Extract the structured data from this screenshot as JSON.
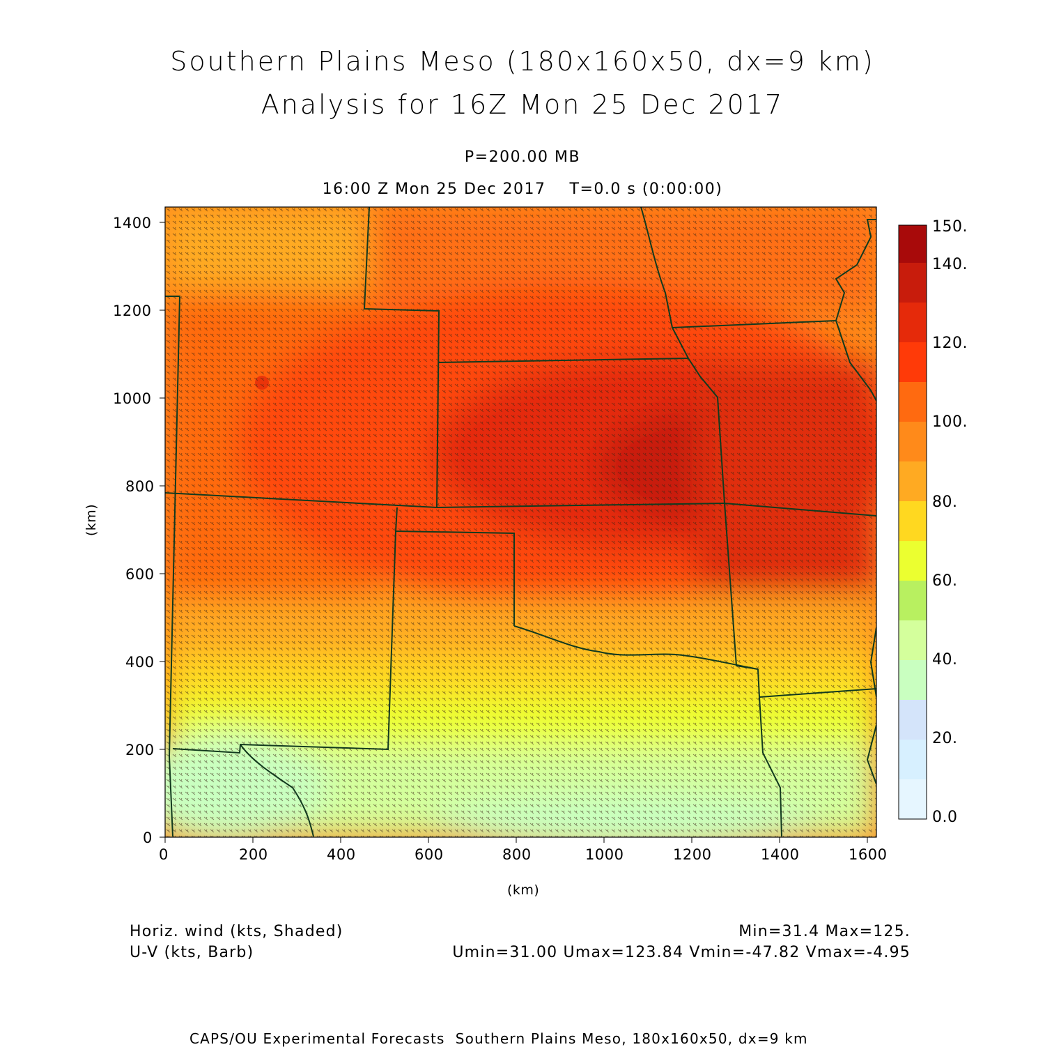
{
  "header": {
    "title_line1": "Southern Plains Meso (180x160x50, dx=9 km)",
    "title_line2": "Analysis for 16Z Mon 25 Dec 2017",
    "level": "P=200.00 MB",
    "time": "16:00 Z Mon 25 Dec 2017    T=0.0 s (0:00:00)"
  },
  "axes": {
    "x_ticks": [
      "0",
      "200",
      "400",
      "600",
      "800",
      "1000",
      "1200",
      "1400",
      "1600"
    ],
    "y_ticks": [
      "0",
      "200",
      "400",
      "600",
      "800",
      "1000",
      "1200",
      "1400"
    ],
    "x_label": "(km)",
    "y_label": "(km)",
    "x_range": [
      0,
      1620
    ],
    "y_range": [
      0,
      1440
    ]
  },
  "colorbar": {
    "labels": [
      "0.0",
      "20.",
      "40.",
      "60.",
      "80.",
      "100.",
      "120.",
      "140.",
      "150."
    ],
    "colors": [
      "#e6f6ff",
      "#d7f0ff",
      "#d4e4fa",
      "#c9ffc0",
      "#d4ff9c",
      "#b8f060",
      "#ebff30",
      "#ffd820",
      "#ffaa22",
      "#ff8a1a",
      "#ff6a10",
      "#ff3a08",
      "#e52a0a",
      "#c81c0c",
      "#a80a0a"
    ]
  },
  "footer": {
    "field1": "Horiz. wind (kts, Shaded)",
    "field2": "U-V (kts, Barb)",
    "minmax": "Min=31.4 Max=125.",
    "uv_stats": "Umin=31.00 Umax=123.84 Vmin=-47.82 Vmax=-4.95",
    "credit": "CAPS/OU Experimental Forecasts  Southern Plains Meso, 180x160x50, dx=9 km"
  },
  "map": {
    "field": "horizontal wind speed",
    "units": "kts",
    "min": 31.4,
    "max": 125
  }
}
